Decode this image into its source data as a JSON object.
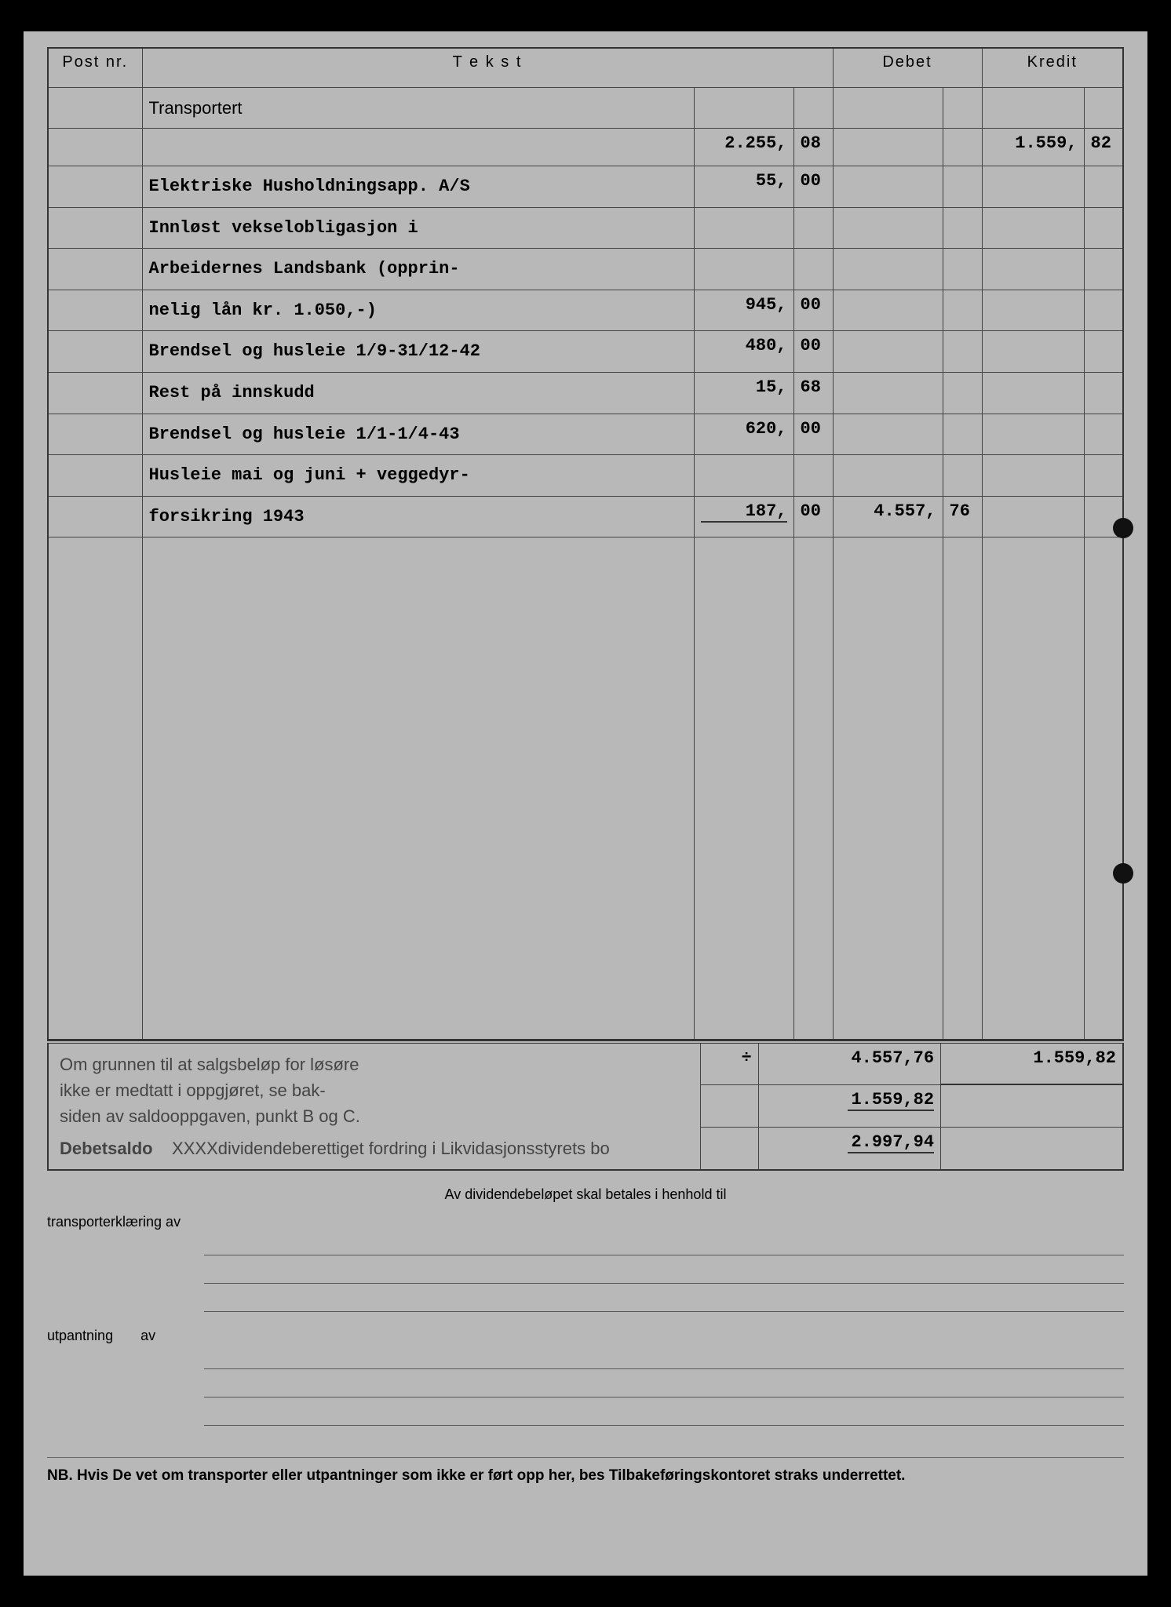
{
  "headers": {
    "post": "Post nr.",
    "tekst": "T e k s t",
    "debet": "Debet",
    "kredit": "Kredit"
  },
  "transportert_label": "Transportert",
  "rows": [
    {
      "text": "",
      "sub_int": "2.255,",
      "sub_dec": "08",
      "kredit_int": "1.559,",
      "kredit_dec": "82"
    },
    {
      "text": "Elektriske Husholdningsapp. A/S",
      "sub_int": "55,",
      "sub_dec": "00"
    },
    {
      "text": "Innløst vekselobligasjon i"
    },
    {
      "text": "Arbeidernes Landsbank (opprin-"
    },
    {
      "text": "nelig lån kr. 1.050,-)",
      "sub_int": "945,",
      "sub_dec": "00"
    },
    {
      "text": "Brendsel og husleie 1/9-31/12-42",
      "sub_int": "480,",
      "sub_dec": "00"
    },
    {
      "text": "Rest på innskudd",
      "sub_int": "15,",
      "sub_dec": "68"
    },
    {
      "text": "Brendsel og husleie 1/1-1/4-43",
      "sub_int": "620,",
      "sub_dec": "00"
    },
    {
      "text": "Husleie mai og juni + veggedyr-"
    },
    {
      "text": "forsikring 1943",
      "sub_int": "187,",
      "sub_dec": "00",
      "debet_int": "4.557,",
      "debet_dec": "76",
      "underline": true
    }
  ],
  "summary": {
    "note1": "Om grunnen til at salgsbeløp for løsøre",
    "note2": "ikke er medtatt i oppgjøret, se bak-",
    "note3": "siden av saldooppgaven, punkt B og C.",
    "debetsaldo_label": "Debetsaldo",
    "debetsaldo_text": "XXXXdividendeberettiget fordring i Likvidasjonsstyrets bo",
    "debet_total": "4.557,76",
    "kredit_total": "1.559,82",
    "minus": "1.559,82",
    "result": "2.997,94"
  },
  "dividend": {
    "header": "Av dividendebeløpet skal betales i henhold til",
    "transport_label": "transporterklæring av",
    "utpantning_label": "utpantning",
    "av_label": "av"
  },
  "nb": "NB. Hvis De vet om transporter eller utpantninger som ikke er ført opp her, bes Tilbakeføringskontoret straks underrettet."
}
